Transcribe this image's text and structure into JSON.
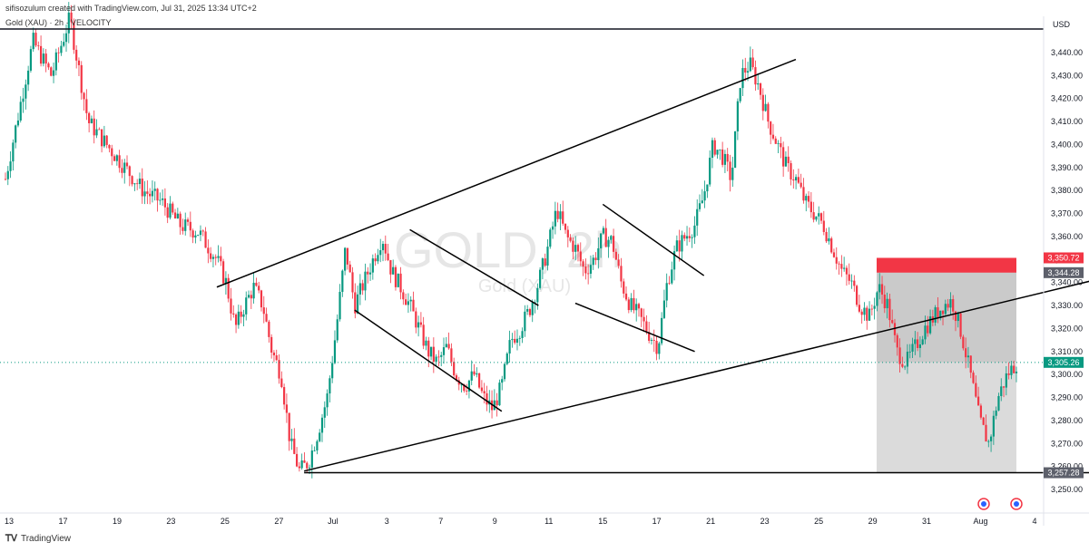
{
  "header": {
    "created_by": "sifisozulum created with TradingView.com, Jul 31, 2025 13:34 UTC+2",
    "symbol": "Gold (XAU) · 2h · VELOCITY"
  },
  "watermark": {
    "main": "GOLD, 2h",
    "sub": "Gold (XAU)"
  },
  "footer": {
    "brand": "TradingView"
  },
  "chart_data": {
    "type": "candlestick",
    "currency": "USD",
    "y_ticks": [
      "3,440.00",
      "3,430.00",
      "3,420.00",
      "3,410.00",
      "3,400.00",
      "3,390.00",
      "3,380.00",
      "3,370.00",
      "3,360.00",
      "3,350.00",
      "3,340.00",
      "3,330.00",
      "3,320.00",
      "3,310.00",
      "3,300.00",
      "3,290.00",
      "3,280.00",
      "3,270.00",
      "3,260.00",
      "3,250.00"
    ],
    "ylim": [
      3250,
      3440
    ],
    "x_labels": [
      "13",
      "17",
      "19",
      "23",
      "25",
      "27",
      "Jul",
      "3",
      "7",
      "9",
      "11",
      "15",
      "17",
      "21",
      "23",
      "25",
      "29",
      "31",
      "Aug",
      "4"
    ],
    "price_labels": [
      {
        "text": "3,350.72",
        "value": 3350.72,
        "color": "#f23645"
      },
      {
        "text": "3,344.28",
        "value": 3344.28,
        "color": "#5d606b"
      },
      {
        "text": "3,305.26",
        "value": 3305.26,
        "color": "#089981"
      },
      {
        "text": "3,257.28",
        "value": 3257.28,
        "color": "#5d606b"
      }
    ],
    "colors": {
      "up": "#089981",
      "down": "#f23645",
      "trendline": "#000000",
      "last_price": "#089981"
    },
    "trade_box": {
      "stop_zone": [
        3344.28,
        3350.72
      ],
      "entry": 3344.28,
      "target": 3257.28
    },
    "series_path": [
      [
        0,
        3385
      ],
      [
        3,
        3445
      ],
      [
        5,
        3430
      ],
      [
        7,
        3455
      ],
      [
        9,
        3410
      ],
      [
        12,
        3395
      ],
      [
        15,
        3380
      ],
      [
        17,
        3375
      ],
      [
        19,
        3365
      ],
      [
        21,
        3362
      ],
      [
        23,
        3350
      ],
      [
        24,
        3340
      ],
      [
        25,
        3320
      ],
      [
        26,
        3330
      ],
      [
        27,
        3338
      ],
      [
        28,
        3330
      ],
      [
        29,
        3310
      ],
      [
        30,
        3300
      ],
      [
        31,
        3270
      ],
      [
        32,
        3258
      ],
      [
        33,
        3262
      ],
      [
        34,
        3275
      ],
      [
        35,
        3290
      ],
      [
        36,
        3320
      ],
      [
        37,
        3355
      ],
      [
        38,
        3330
      ],
      [
        39,
        3340
      ],
      [
        40,
        3350
      ],
      [
        41,
        3360
      ],
      [
        42,
        3345
      ],
      [
        43,
        3338
      ],
      [
        44,
        3330
      ],
      [
        45,
        3320
      ],
      [
        46,
        3310
      ],
      [
        47,
        3305
      ],
      [
        48,
        3312
      ],
      [
        49,
        3300
      ],
      [
        50,
        3295
      ],
      [
        51,
        3300
      ],
      [
        52,
        3290
      ],
      [
        53,
        3285
      ],
      [
        54,
        3295
      ],
      [
        55,
        3315
      ],
      [
        56,
        3320
      ],
      [
        57,
        3328
      ],
      [
        58,
        3340
      ],
      [
        59,
        3355
      ],
      [
        60,
        3372
      ],
      [
        61,
        3360
      ],
      [
        62,
        3355
      ],
      [
        63,
        3345
      ],
      [
        64,
        3350
      ],
      [
        65,
        3360
      ],
      [
        66,
        3358
      ],
      [
        67,
        3340
      ],
      [
        68,
        3330
      ],
      [
        69,
        3325
      ],
      [
        70,
        3318
      ],
      [
        71,
        3312
      ],
      [
        72,
        3340
      ],
      [
        73,
        3355
      ],
      [
        74,
        3360
      ],
      [
        75,
        3365
      ],
      [
        76,
        3378
      ],
      [
        77,
        3400
      ],
      [
        78,
        3395
      ],
      [
        79,
        3385
      ],
      [
        80,
        3430
      ],
      [
        81,
        3435
      ],
      [
        82,
        3425
      ],
      [
        83,
        3410
      ],
      [
        84,
        3400
      ],
      [
        85,
        3390
      ],
      [
        86,
        3385
      ],
      [
        87,
        3375
      ],
      [
        88,
        3370
      ],
      [
        89,
        3365
      ],
      [
        90,
        3355
      ],
      [
        91,
        3345
      ],
      [
        92,
        3340
      ],
      [
        93,
        3330
      ],
      [
        94,
        3325
      ],
      [
        95,
        3338
      ],
      [
        96,
        3330
      ],
      [
        97,
        3310
      ],
      [
        98,
        3305
      ],
      [
        99,
        3312
      ],
      [
        100,
        3320
      ],
      [
        101,
        3325
      ],
      [
        102,
        3330
      ],
      [
        103,
        3332
      ],
      [
        104,
        3318
      ],
      [
        105,
        3300
      ],
      [
        106,
        3280
      ],
      [
        107,
        3270
      ],
      [
        108,
        3290
      ],
      [
        109,
        3300
      ],
      [
        110,
        3305
      ]
    ]
  }
}
